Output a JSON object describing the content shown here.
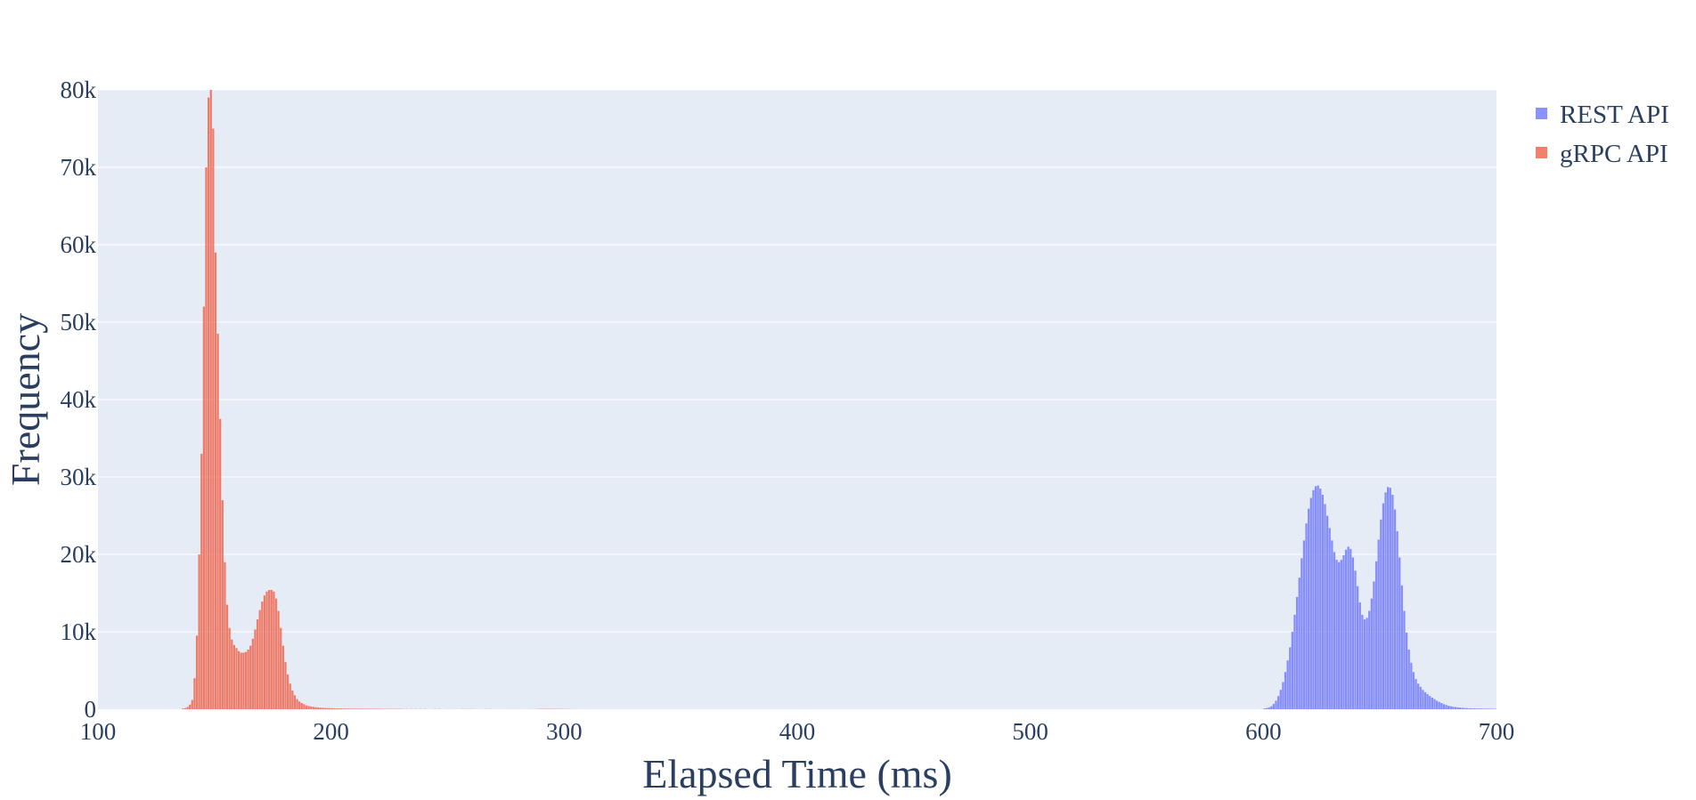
{
  "chart_data": {
    "type": "histogram",
    "title": "",
    "xlabel": "Elapsed Time (ms)",
    "ylabel": "Frequency",
    "xlim": [
      100,
      700
    ],
    "ylim": [
      0,
      80000
    ],
    "bin_width": 1,
    "x_ticks": [
      100,
      200,
      300,
      400,
      500,
      600,
      700
    ],
    "x_tick_labels": [
      "100",
      "200",
      "300",
      "400",
      "500",
      "600",
      "700"
    ],
    "y_ticks": [
      0,
      10000,
      20000,
      30000,
      40000,
      50000,
      60000,
      70000,
      80000
    ],
    "y_tick_labels": [
      "0",
      "10k",
      "20k",
      "30k",
      "40k",
      "50k",
      "60k",
      "70k",
      "80k"
    ],
    "grid": true,
    "legend_position": "top-right",
    "series": [
      {
        "name": "REST API",
        "color": "#636efa",
        "opacity": 0.75,
        "bins": [
          [
            600,
            100
          ],
          [
            601,
            150
          ],
          [
            602,
            250
          ],
          [
            603,
            400
          ],
          [
            604,
            700
          ],
          [
            605,
            1100
          ],
          [
            606,
            1700
          ],
          [
            607,
            2500
          ],
          [
            608,
            3500
          ],
          [
            609,
            4800
          ],
          [
            610,
            6300
          ],
          [
            611,
            8000
          ],
          [
            612,
            10000
          ],
          [
            613,
            12200
          ],
          [
            614,
            14500
          ],
          [
            615,
            17000
          ],
          [
            616,
            19500
          ],
          [
            617,
            21800
          ],
          [
            618,
            24000
          ],
          [
            619,
            25900
          ],
          [
            620,
            27300
          ],
          [
            621,
            28300
          ],
          [
            622,
            28800
          ],
          [
            623,
            28900
          ],
          [
            624,
            28500
          ],
          [
            625,
            27700
          ],
          [
            626,
            26500
          ],
          [
            627,
            25000
          ],
          [
            628,
            23400
          ],
          [
            629,
            21800
          ],
          [
            630,
            20300
          ],
          [
            631,
            19300
          ],
          [
            632,
            19000
          ],
          [
            633,
            19300
          ],
          [
            634,
            19900
          ],
          [
            635,
            20600
          ],
          [
            636,
            21000
          ],
          [
            637,
            20700
          ],
          [
            638,
            19600
          ],
          [
            639,
            17900
          ],
          [
            640,
            15900
          ],
          [
            641,
            13800
          ],
          [
            642,
            12200
          ],
          [
            643,
            11600
          ],
          [
            644,
            11800
          ],
          [
            645,
            12700
          ],
          [
            646,
            14300
          ],
          [
            647,
            16500
          ],
          [
            648,
            19100
          ],
          [
            649,
            21900
          ],
          [
            650,
            24500
          ],
          [
            651,
            26600
          ],
          [
            652,
            28000
          ],
          [
            653,
            28700
          ],
          [
            654,
            28600
          ],
          [
            655,
            27700
          ],
          [
            656,
            25800
          ],
          [
            657,
            23000
          ],
          [
            658,
            19600
          ],
          [
            659,
            16000
          ],
          [
            660,
            12700
          ],
          [
            661,
            9900
          ],
          [
            662,
            7700
          ],
          [
            663,
            6000
          ],
          [
            664,
            4800
          ],
          [
            665,
            3900
          ],
          [
            666,
            3300
          ],
          [
            667,
            2900
          ],
          [
            668,
            2500
          ],
          [
            669,
            2200
          ],
          [
            670,
            1950
          ],
          [
            671,
            1700
          ],
          [
            672,
            1500
          ],
          [
            673,
            1300
          ],
          [
            674,
            1100
          ],
          [
            675,
            950
          ],
          [
            676,
            800
          ],
          [
            677,
            650
          ],
          [
            678,
            550
          ],
          [
            679,
            450
          ],
          [
            680,
            380
          ],
          [
            681,
            320
          ],
          [
            682,
            280
          ],
          [
            683,
            240
          ],
          [
            684,
            210
          ],
          [
            685,
            180
          ],
          [
            686,
            160
          ],
          [
            687,
            140
          ],
          [
            688,
            120
          ],
          [
            689,
            110
          ],
          [
            690,
            100
          ],
          [
            691,
            95
          ],
          [
            692,
            90
          ],
          [
            693,
            85
          ],
          [
            694,
            80
          ],
          [
            695,
            75
          ],
          [
            696,
            70
          ],
          [
            697,
            65
          ],
          [
            698,
            60
          ],
          [
            699,
            55
          ]
        ]
      },
      {
        "name": "gRPC API",
        "color": "#ef553b",
        "opacity": 0.75,
        "bins": [
          [
            136,
            100
          ],
          [
            137,
            150
          ],
          [
            138,
            300
          ],
          [
            139,
            600
          ],
          [
            140,
            1200
          ],
          [
            141,
            4000
          ],
          [
            142,
            9500
          ],
          [
            143,
            20000
          ],
          [
            144,
            33000
          ],
          [
            145,
            52000
          ],
          [
            146,
            70000
          ],
          [
            147,
            79000
          ],
          [
            148,
            80000
          ],
          [
            149,
            75000
          ],
          [
            150,
            59000
          ],
          [
            151,
            48500
          ],
          [
            152,
            37500
          ],
          [
            153,
            27000
          ],
          [
            154,
            19000
          ],
          [
            155,
            13500
          ],
          [
            156,
            10500
          ],
          [
            157,
            9000
          ],
          [
            158,
            8300
          ],
          [
            159,
            7900
          ],
          [
            160,
            7500
          ],
          [
            161,
            7300
          ],
          [
            162,
            7300
          ],
          [
            163,
            7400
          ],
          [
            164,
            7700
          ],
          [
            165,
            8200
          ],
          [
            166,
            9100
          ],
          [
            167,
            10300
          ],
          [
            168,
            11600
          ],
          [
            169,
            12800
          ],
          [
            170,
            13900
          ],
          [
            171,
            14700
          ],
          [
            172,
            15200
          ],
          [
            173,
            15400
          ],
          [
            174,
            15400
          ],
          [
            175,
            15200
          ],
          [
            176,
            14300
          ],
          [
            177,
            12700
          ],
          [
            178,
            10500
          ],
          [
            179,
            8200
          ],
          [
            180,
            6100
          ],
          [
            181,
            4500
          ],
          [
            182,
            3300
          ],
          [
            183,
            2400
          ],
          [
            184,
            1800
          ],
          [
            185,
            1300
          ],
          [
            186,
            1000
          ],
          [
            187,
            800
          ],
          [
            188,
            650
          ],
          [
            189,
            500
          ],
          [
            190,
            420
          ],
          [
            191,
            350
          ],
          [
            192,
            300
          ],
          [
            193,
            260
          ],
          [
            194,
            230
          ],
          [
            195,
            200
          ],
          [
            196,
            180
          ],
          [
            197,
            160
          ],
          [
            198,
            150
          ],
          [
            199,
            140
          ],
          [
            200,
            130
          ],
          [
            201,
            120
          ],
          [
            202,
            110
          ],
          [
            203,
            100
          ],
          [
            204,
            95
          ],
          [
            205,
            90
          ],
          [
            206,
            85
          ],
          [
            207,
            80
          ],
          [
            208,
            80
          ],
          [
            209,
            75
          ],
          [
            210,
            75
          ],
          [
            211,
            70
          ],
          [
            212,
            70
          ],
          [
            213,
            65
          ],
          [
            214,
            65
          ],
          [
            215,
            60
          ],
          [
            216,
            60
          ],
          [
            217,
            55
          ],
          [
            218,
            55
          ],
          [
            219,
            50
          ],
          [
            220,
            50
          ],
          [
            221,
            50
          ],
          [
            222,
            45
          ],
          [
            223,
            45
          ],
          [
            224,
            40
          ],
          [
            225,
            40
          ],
          [
            226,
            40
          ],
          [
            227,
            35
          ],
          [
            228,
            35
          ],
          [
            229,
            30
          ],
          [
            230,
            30
          ],
          [
            232,
            30
          ],
          [
            234,
            25
          ],
          [
            236,
            25
          ],
          [
            238,
            25
          ],
          [
            240,
            20
          ],
          [
            244,
            20
          ],
          [
            246,
            20
          ],
          [
            250,
            15
          ],
          [
            256,
            20
          ],
          [
            258,
            15
          ],
          [
            260,
            15
          ],
          [
            266,
            10
          ],
          [
            268,
            15
          ],
          [
            276,
            10
          ],
          [
            280,
            10
          ],
          [
            286,
            10
          ],
          [
            288,
            20
          ],
          [
            289,
            30
          ],
          [
            290,
            35
          ],
          [
            291,
            40
          ],
          [
            292,
            45
          ],
          [
            293,
            40
          ],
          [
            294,
            40
          ],
          [
            295,
            35
          ],
          [
            296,
            35
          ],
          [
            297,
            30
          ],
          [
            298,
            30
          ],
          [
            299,
            25
          ],
          [
            300,
            20
          ],
          [
            301,
            15
          ],
          [
            302,
            10
          ]
        ]
      }
    ]
  }
}
